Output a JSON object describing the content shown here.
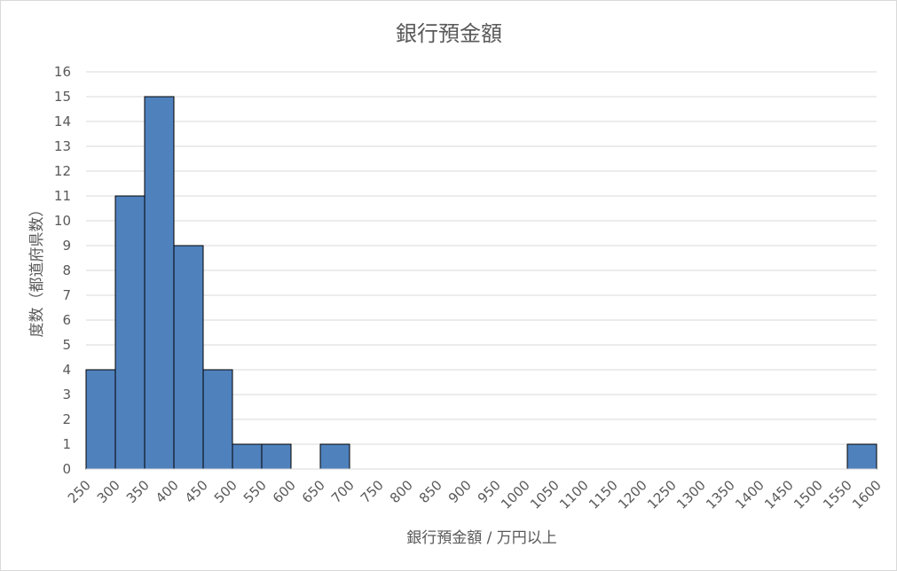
{
  "chart_data": {
    "type": "bar",
    "title": "銀行預金額",
    "xlabel": "銀行預金額 / 万円以上",
    "ylabel": "度数（都道府県数）",
    "categories": [
      "250",
      "300",
      "350",
      "400",
      "450",
      "500",
      "550",
      "600",
      "650",
      "700",
      "750",
      "800",
      "850",
      "900",
      "950",
      "1000",
      "1050",
      "1100",
      "1150",
      "1200",
      "1250",
      "1300",
      "1350",
      "1400",
      "1450",
      "1500",
      "1550"
    ],
    "values": [
      4,
      11,
      15,
      9,
      4,
      1,
      1,
      0,
      1,
      0,
      0,
      0,
      0,
      0,
      0,
      0,
      0,
      0,
      0,
      0,
      0,
      0,
      0,
      0,
      0,
      0,
      1
    ],
    "x_tick_labels": [
      "250",
      "300",
      "350",
      "400",
      "450",
      "500",
      "550",
      "600",
      "650",
      "700",
      "750",
      "800",
      "850",
      "900",
      "950",
      "1000",
      "1050",
      "1100",
      "1150",
      "1200",
      "1250",
      "1300",
      "1350",
      "1400",
      "1450",
      "1500",
      "1550",
      "1600"
    ],
    "ylim": [
      0,
      16
    ],
    "y_ticks": [
      0,
      1,
      2,
      3,
      4,
      5,
      6,
      7,
      8,
      9,
      10,
      11,
      12,
      13,
      14,
      15,
      16
    ],
    "grid": true,
    "bar_color": "#4f81bd",
    "bar_edge_color": "#000000",
    "grid_color": "#d9d9d9",
    "text_color": "#595959"
  }
}
